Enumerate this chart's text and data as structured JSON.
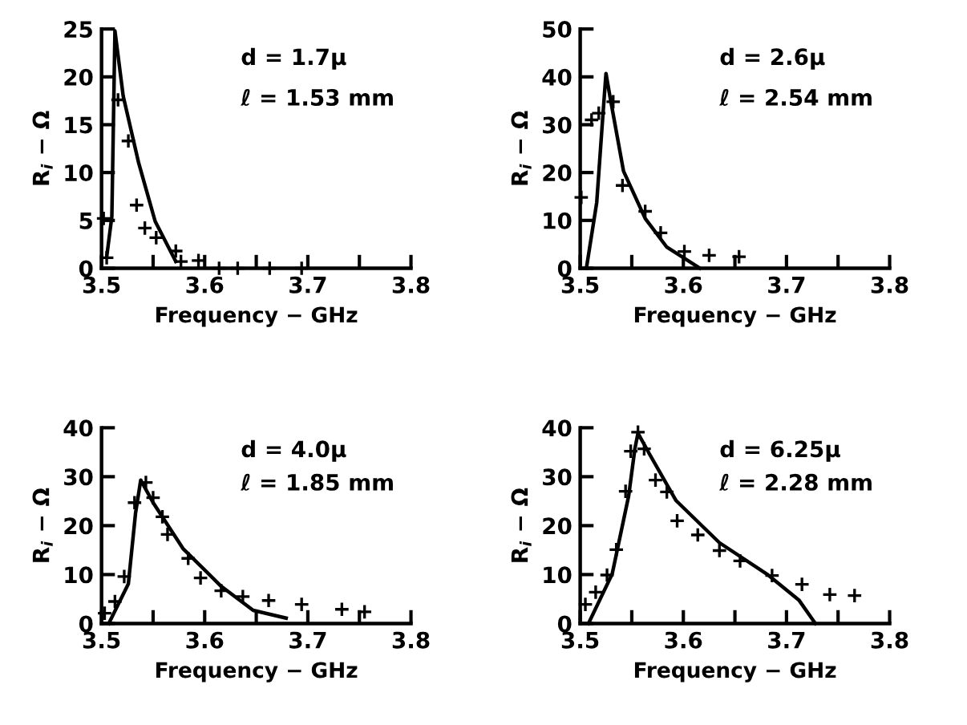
{
  "chart_data": [
    {
      "type": "line",
      "xlabel": "Frequency − GHz",
      "ylabel": "R$_{i}$ − Ω",
      "annotations": [
        "d = 1.7μ",
        "ℓ = 1.53 mm"
      ],
      "xlim": [
        3.5,
        3.8
      ],
      "ylim": [
        0,
        25
      ],
      "xticks": [
        3.5,
        {
          "value": 3.55,
          "label": null
        },
        3.6,
        {
          "value": 3.65,
          "label": null
        },
        3.7,
        {
          "value": 3.75,
          "label": null
        },
        3.8
      ],
      "yticks": [
        0,
        5,
        10,
        15,
        20,
        25
      ],
      "grid": false,
      "legend": false,
      "series": [
        {
          "color": "#000000",
          "marker": "none",
          "line_style": "solid",
          "x": [
            3.505,
            3.51,
            3.513,
            3.521,
            3.536,
            3.552,
            3.572
          ],
          "values": [
            1.2,
            5.4,
            24.8,
            18,
            11,
            4.9,
            0.7
          ]
        },
        {
          "type": "scatter",
          "color": "#000000",
          "marker": "cross",
          "x": [
            3.502,
            3.505,
            3.516,
            3.526,
            3.534,
            3.542,
            3.553,
            3.572,
            3.577,
            3.594,
            3.614,
            3.632,
            3.663,
            3.694
          ],
          "values": [
            5.2,
            1.1,
            17.6,
            13.3,
            6.6,
            4.2,
            3.2,
            1.8,
            0.7,
            0.8,
            0,
            0,
            0,
            0
          ]
        }
      ]
    },
    {
      "type": "line",
      "xlabel": "Frequency − GHz",
      "ylabel": "R$_{i}$ − Ω",
      "annotations": [
        "d = 2.6μ",
        "ℓ = 2.54 mm"
      ],
      "xlim": [
        3.5,
        3.8
      ],
      "ylim": [
        0,
        50
      ],
      "xticks": [
        3.5,
        {
          "value": 3.55,
          "label": null
        },
        3.6,
        {
          "value": 3.65,
          "label": null
        },
        3.7,
        {
          "value": 3.75,
          "label": null
        },
        3.8
      ],
      "yticks": [
        0,
        10,
        20,
        30,
        40,
        50
      ],
      "grid": false,
      "legend": false,
      "series": [
        {
          "color": "#000000",
          "marker": "none",
          "line_style": "solid",
          "x": [
            3.506,
            3.516,
            3.522,
            3.525,
            3.529,
            3.542,
            3.563,
            3.584,
            3.616
          ],
          "values": [
            0,
            13.7,
            32,
            40.7,
            35.7,
            20.3,
            10.4,
            4.4,
            0
          ]
        },
        {
          "type": "scatter",
          "color": "#000000",
          "marker": "cross",
          "x": [
            3.501,
            3.511,
            3.518,
            3.532,
            3.541,
            3.563,
            3.578,
            3.601,
            3.625,
            3.654
          ],
          "values": [
            14.8,
            31,
            32.4,
            34.8,
            17.3,
            11.9,
            7.4,
            3.5,
            2.7,
            2.4
          ]
        }
      ]
    },
    {
      "type": "line",
      "xlabel": "Frequency − GHz",
      "ylabel": "R$_{i}$ − Ω",
      "annotations": [
        "d = 4.0μ",
        "ℓ = 1.85 mm"
      ],
      "xlim": [
        3.5,
        3.8
      ],
      "ylim": [
        0,
        40
      ],
      "xticks": [
        3.5,
        {
          "value": 3.55,
          "label": null
        },
        3.6,
        {
          "value": 3.65,
          "label": null
        },
        3.7,
        {
          "value": 3.75,
          "label": null
        },
        3.8
      ],
      "yticks": [
        0,
        10,
        20,
        30,
        40
      ],
      "grid": false,
      "legend": false,
      "series": [
        {
          "color": "#000000",
          "marker": "none",
          "line_style": "solid",
          "x": [
            3.507,
            3.526,
            3.533,
            3.538,
            3.55,
            3.579,
            3.616,
            3.647,
            3.679
          ],
          "values": [
            0,
            8.1,
            22.6,
            29.3,
            24.7,
            15.3,
            7.6,
            2.7,
            1.1
          ]
        },
        {
          "type": "scatter",
          "color": "#000000",
          "marker": "cross",
          "x": [
            3.503,
            3.513,
            3.522,
            3.532,
            3.543,
            3.55,
            3.559,
            3.564,
            3.584,
            3.596,
            3.616,
            3.637,
            3.662,
            3.694,
            3.733,
            3.755
          ],
          "values": [
            2.1,
            4.5,
            9.6,
            24.7,
            28.8,
            25.7,
            21.8,
            18.2,
            13.3,
            9.3,
            6.7,
            5.5,
            4.7,
            3.9,
            2.9,
            2.4
          ]
        }
      ]
    },
    {
      "type": "line",
      "xlabel": "Frequency − GHz",
      "ylabel": "R$_{i}$ − Ω",
      "annotations": [
        "d = 6.25μ",
        "ℓ = 2.28 mm"
      ],
      "xlim": [
        3.5,
        3.8
      ],
      "ylim": [
        0,
        40
      ],
      "xticks": [
        3.5,
        {
          "value": 3.55,
          "label": null
        },
        3.6,
        {
          "value": 3.65,
          "label": null
        },
        3.7,
        {
          "value": 3.75,
          "label": null
        },
        3.8
      ],
      "yticks": [
        0,
        10,
        20,
        30,
        40
      ],
      "grid": false,
      "legend": false,
      "series": [
        {
          "color": "#000000",
          "marker": "none",
          "line_style": "solid",
          "x": [
            3.508,
            3.531,
            3.547,
            3.553,
            3.556,
            3.567,
            3.593,
            3.635,
            3.681,
            3.712,
            3.728
          ],
          "values": [
            0,
            10.1,
            26.1,
            35.7,
            38.9,
            34.7,
            25.1,
            16.5,
            10.1,
            4.8,
            0
          ]
        },
        {
          "type": "scatter",
          "color": "#000000",
          "marker": "cross",
          "x": [
            3.505,
            3.515,
            3.526,
            3.535,
            3.544,
            3.549,
            3.556,
            3.562,
            3.573,
            3.584,
            3.594,
            3.614,
            3.635,
            3.655,
            3.686,
            3.715,
            3.742,
            3.766
          ],
          "values": [
            3.9,
            6.4,
            9.9,
            15.1,
            27,
            35.2,
            39.1,
            35.7,
            29.3,
            26.9,
            21,
            18.1,
            14.9,
            12.8,
            9.8,
            8,
            5.9,
            5.7
          ]
        }
      ]
    }
  ]
}
